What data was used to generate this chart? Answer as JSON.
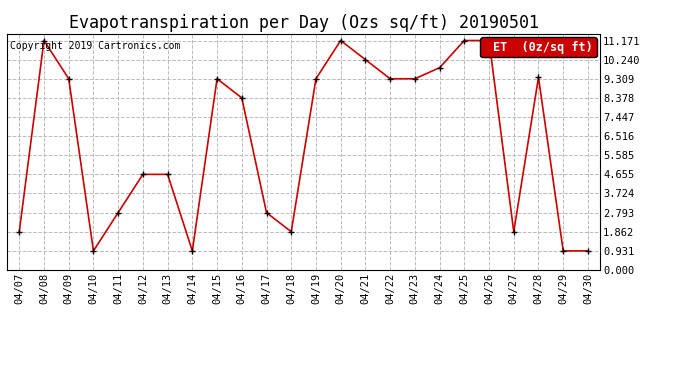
{
  "title": "Evapotranspiration per Day (Ozs sq/ft) 20190501",
  "copyright_text": "Copyright 2019 Cartronics.com",
  "legend_label": "ET  (0z/sq ft)",
  "dates": [
    "04/07",
    "04/08",
    "04/09",
    "04/10",
    "04/11",
    "04/12",
    "04/13",
    "04/14",
    "04/15",
    "04/16",
    "04/17",
    "04/18",
    "04/19",
    "04/20",
    "04/21",
    "04/22",
    "04/23",
    "04/24",
    "04/25",
    "04/26",
    "04/27",
    "04/28",
    "04/29",
    "04/30"
  ],
  "values": [
    1.862,
    11.171,
    9.309,
    0.931,
    2.793,
    4.655,
    4.655,
    0.931,
    9.309,
    8.378,
    2.793,
    1.862,
    9.309,
    11.171,
    10.24,
    9.309,
    9.309,
    9.847,
    11.171,
    11.171,
    1.862,
    9.378,
    0.931,
    0.931
  ],
  "yticks": [
    0.0,
    0.931,
    1.862,
    2.793,
    3.724,
    4.655,
    5.585,
    6.516,
    7.447,
    8.378,
    9.309,
    10.24,
    11.171
  ],
  "ylim": [
    0.0,
    11.5
  ],
  "line_color": "#cc0000",
  "marker_color": "#000000",
  "grid_color": "#bbbbbb",
  "background_color": "#ffffff",
  "legend_bg_color": "#cc0000",
  "legend_text_color": "#ffffff",
  "title_fontsize": 12,
  "copyright_fontsize": 7,
  "tick_fontsize": 7.5,
  "legend_fontsize": 8.5
}
